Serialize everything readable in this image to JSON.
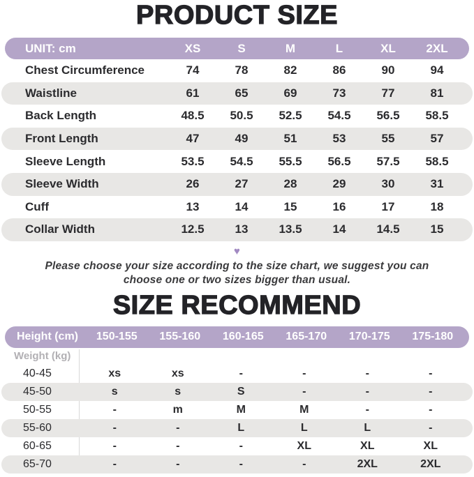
{
  "colors": {
    "purple": "#b4a5c8",
    "stripe": "#e8e7e5",
    "heading": "#232327",
    "text": "#2b2b2e",
    "heart": "#a189c2",
    "muted": "#b2b0b4",
    "divider": "#d9d9d9"
  },
  "note": {
    "icon": "heart-icon",
    "heart_glyph": "♥",
    "text": "Please choose your size according to the size chart, we suggest you can choose one or two sizes bigger than usual."
  },
  "chart_data": [
    {
      "type": "table",
      "title": "PRODUCT SIZE",
      "unit_label": "UNIT: cm",
      "columns": [
        "XS",
        "S",
        "M",
        "L",
        "XL",
        "2XL"
      ],
      "rows": [
        {
          "label": "Chest Circumference",
          "values": [
            "74",
            "78",
            "82",
            "86",
            "90",
            "94"
          ]
        },
        {
          "label": "Waistline",
          "values": [
            "61",
            "65",
            "69",
            "73",
            "77",
            "81"
          ]
        },
        {
          "label": "Back Length",
          "values": [
            "48.5",
            "50.5",
            "52.5",
            "54.5",
            "56.5",
            "58.5"
          ]
        },
        {
          "label": "Front Length",
          "values": [
            "47",
            "49",
            "51",
            "53",
            "55",
            "57"
          ]
        },
        {
          "label": "Sleeve Length",
          "values": [
            "53.5",
            "54.5",
            "55.5",
            "56.5",
            "57.5",
            "58.5"
          ]
        },
        {
          "label": "Sleeve Width",
          "values": [
            "26",
            "27",
            "28",
            "29",
            "30",
            "31"
          ]
        },
        {
          "label": "Cuff",
          "values": [
            "13",
            "14",
            "15",
            "16",
            "17",
            "18"
          ]
        },
        {
          "label": "Collar Width",
          "values": [
            "12.5",
            "13",
            "13.5",
            "14",
            "14.5",
            "15"
          ]
        }
      ]
    },
    {
      "type": "table",
      "title": "SIZE RECOMMEND",
      "header_label": "Height (cm)",
      "row_axis_label": "Weight (kg)",
      "columns": [
        "150-155",
        "155-160",
        "160-165",
        "165-170",
        "170-175",
        "175-180"
      ],
      "rows": [
        {
          "label": "40-45",
          "values": [
            "xs",
            "xs",
            "-",
            "-",
            "-",
            "-"
          ]
        },
        {
          "label": "45-50",
          "values": [
            "s",
            "s",
            "S",
            "-",
            "-",
            "-"
          ]
        },
        {
          "label": "50-55",
          "values": [
            "-",
            "m",
            "M",
            "M",
            "-",
            "-"
          ]
        },
        {
          "label": "55-60",
          "values": [
            "-",
            "-",
            "L",
            "L",
            "L",
            "-"
          ]
        },
        {
          "label": "60-65",
          "values": [
            "-",
            "-",
            "-",
            "XL",
            "XL",
            "XL"
          ]
        },
        {
          "label": "65-70",
          "values": [
            "-",
            "-",
            "-",
            "-",
            "2XL",
            "2XL"
          ]
        }
      ]
    }
  ]
}
